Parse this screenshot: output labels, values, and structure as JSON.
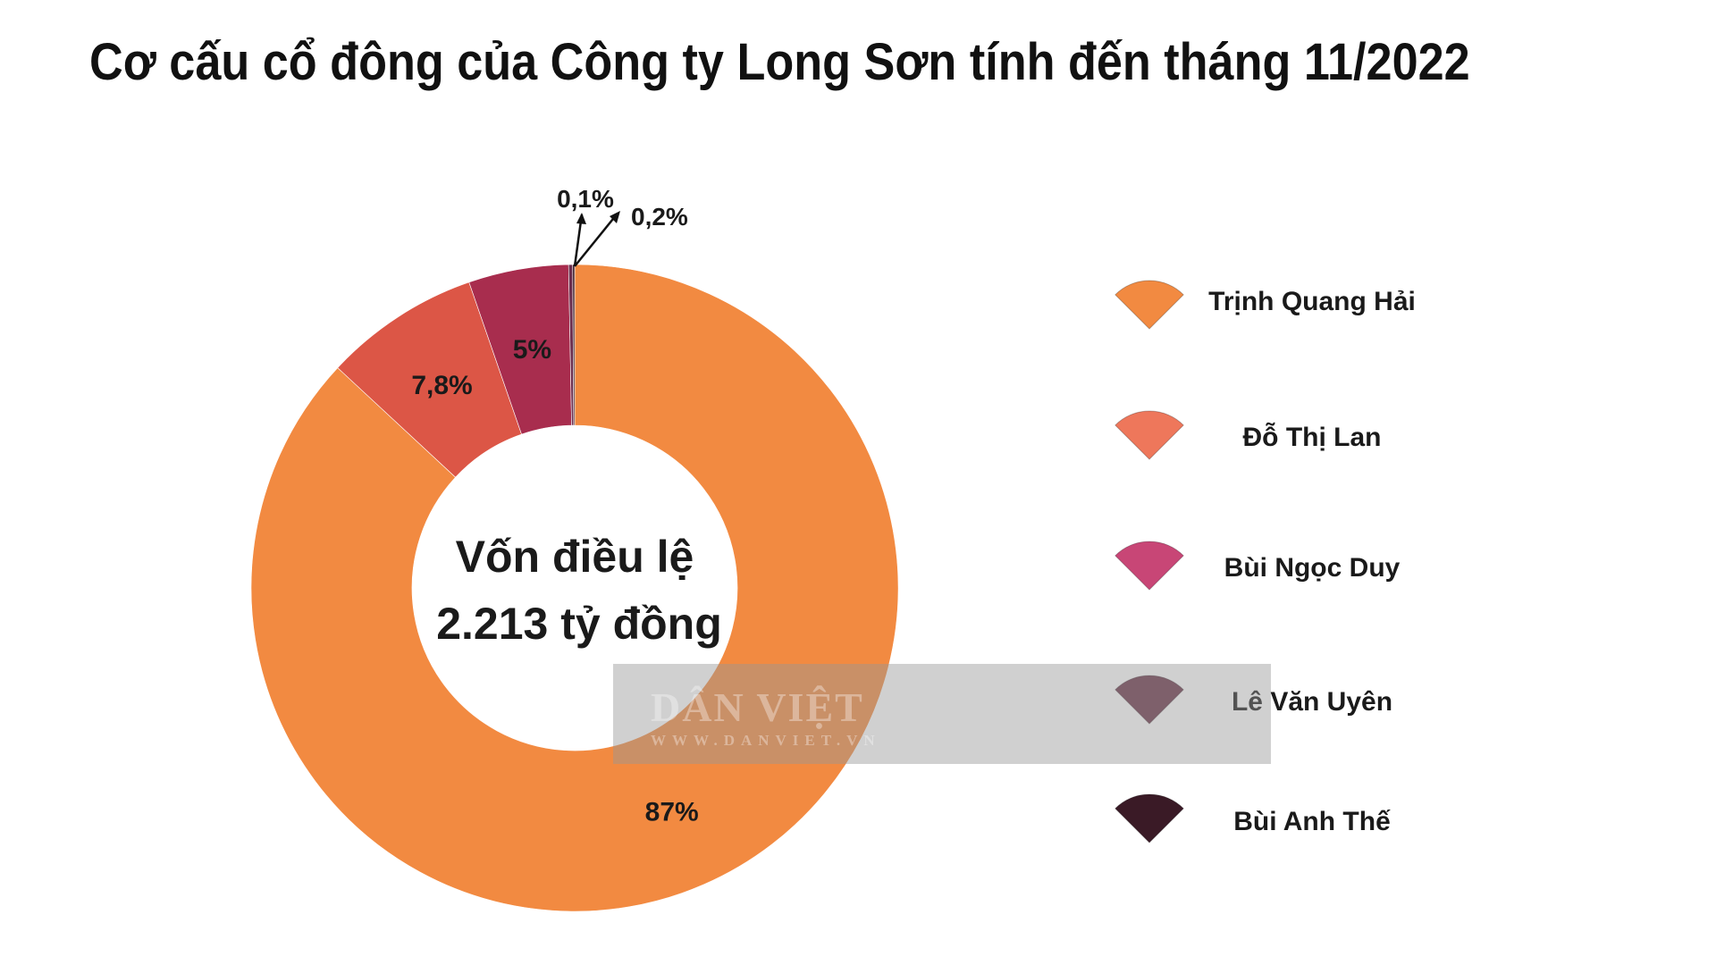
{
  "chart_data": {
    "type": "pie",
    "title": "Cơ cấu cổ đông của Công ty Long Sơn tính đến tháng 11/2022",
    "center_text": [
      "Vốn điều lệ",
      "2.213 tỷ đồng"
    ],
    "categories": [
      "Trịnh Quang Hải",
      "Đỗ Thị Lan",
      "Bùi Ngọc Duy",
      "Lê Văn Uyên",
      "Bùi Anh Thế"
    ],
    "values": [
      87,
      7.8,
      5,
      0.2,
      0.1
    ],
    "data_labels": [
      "87%",
      "7,8%",
      "5%",
      "0,2%",
      "0,1%"
    ],
    "colors": [
      "#F28A41",
      "#DC5646",
      "#A82D4E",
      "#6B2D4D",
      "#3B1A27"
    ],
    "legend_colors": [
      "#F28A41",
      "#EE775B",
      "#C84676",
      "#6A3348",
      "#3A1A26"
    ],
    "legend_position": "right"
  },
  "watermark": {
    "main": "DÂN VIỆT",
    "sub": "WWW.DANVIET.VN"
  }
}
